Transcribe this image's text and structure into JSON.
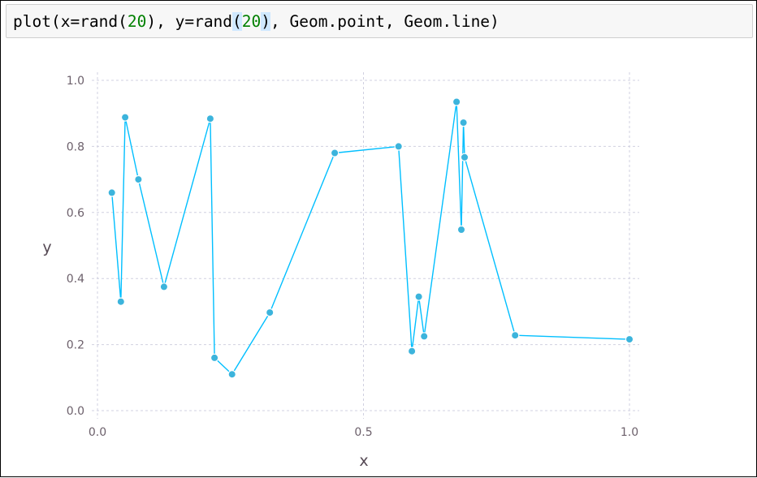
{
  "code_cell": {
    "prefix": "plot(x=rand(",
    "num1": "20",
    "middle": "), y=rand",
    "open_paren": "(",
    "num2": "20",
    "close_paren": ")",
    "suffix": ", Geom.point, Geom.line)"
  },
  "colors": {
    "series": "#00bfff",
    "point_fill": "#3cb4dc",
    "grid": "#d0d0e0",
    "text": "#6c606b"
  },
  "chart_data": {
    "type": "line",
    "title": "",
    "xlabel": "x",
    "ylabel": "y",
    "xlim": [
      0.0,
      1.0
    ],
    "ylim": [
      0.0,
      1.0
    ],
    "xticks": [
      "0.0",
      "0.5",
      "1.0"
    ],
    "yticks": [
      "0.0",
      "0.2",
      "0.4",
      "0.6",
      "0.8",
      "1.0"
    ],
    "grid": true,
    "markers": true,
    "series": [
      {
        "x": [
          0.027,
          0.044,
          0.052,
          0.077,
          0.125,
          0.212,
          0.22,
          0.253,
          0.324,
          0.446,
          0.566,
          0.591,
          0.604,
          0.614,
          0.675,
          0.684,
          0.688,
          0.69,
          0.785,
          1.0
        ],
        "y": [
          0.66,
          0.33,
          0.888,
          0.7,
          0.375,
          0.884,
          0.16,
          0.11,
          0.297,
          0.78,
          0.8,
          0.18,
          0.345,
          0.225,
          0.935,
          0.548,
          0.872,
          0.767,
          0.228,
          0.216
        ]
      }
    ]
  }
}
